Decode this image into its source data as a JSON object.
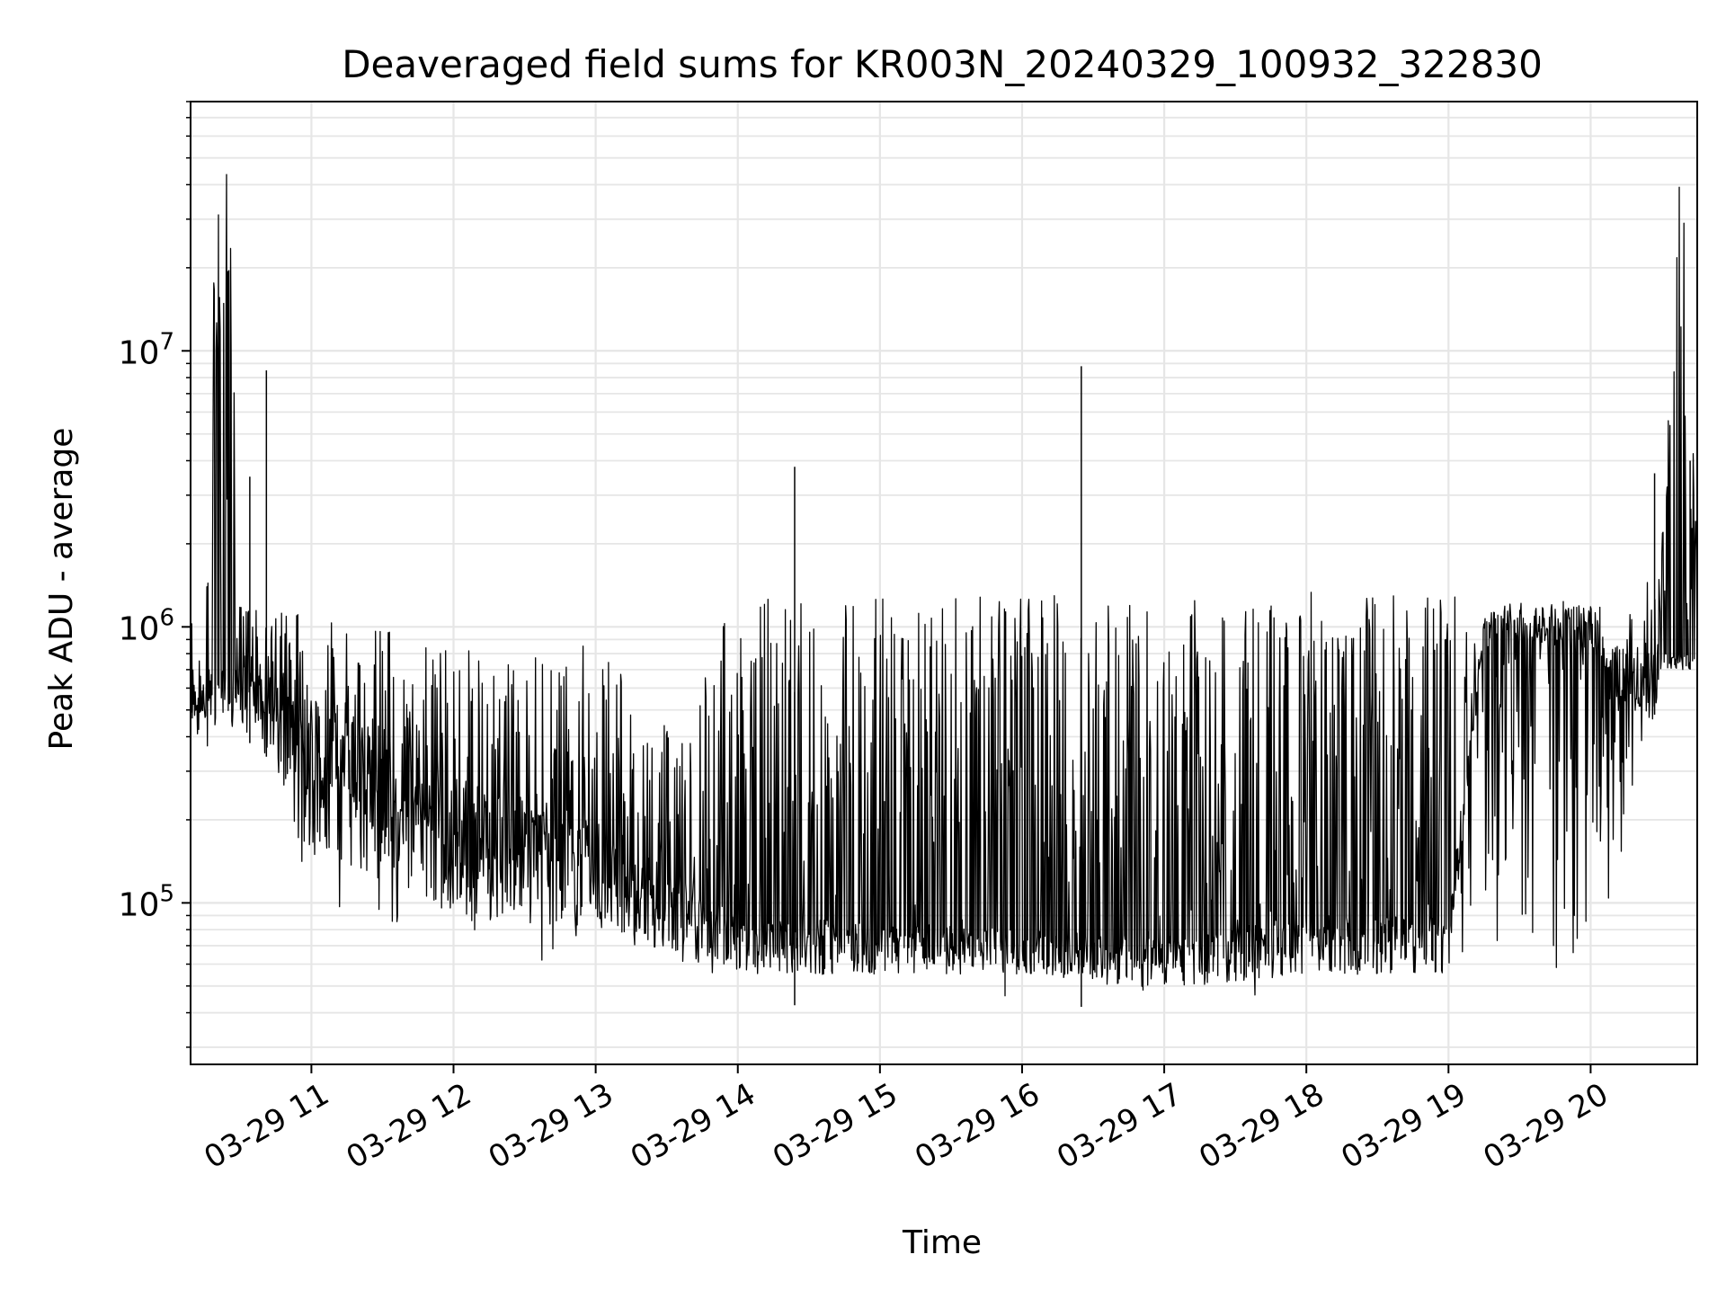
{
  "chart_data": {
    "type": "line",
    "title": "Deaveraged field sums for KR003N_20240329_100932_322830",
    "xlabel": "Time",
    "ylabel": "Peak ADU - average",
    "x_tick_labels": [
      "03-29 11",
      "03-29 12",
      "03-29 13",
      "03-29 14",
      "03-29 15",
      "03-29 16",
      "03-29 17",
      "03-29 18",
      "03-29 19",
      "03-29 20"
    ],
    "x_ticks": [
      "2024-03-29 11:00",
      "2024-03-29 12:00",
      "2024-03-29 13:00",
      "2024-03-29 14:00",
      "2024-03-29 15:00",
      "2024-03-29 16:00",
      "2024-03-29 17:00",
      "2024-03-29 18:00",
      "2024-03-29 19:00",
      "2024-03-29 20:00"
    ],
    "y_tick_labels": [
      {
        "base": "10",
        "exp": "5",
        "value": 100000
      },
      {
        "base": "10",
        "exp": "6",
        "value": 1000000
      },
      {
        "base": "10",
        "exp": "7",
        "value": 10000000
      }
    ],
    "xlim": [
      "2024-03-29 10:09",
      "2024-03-29 20:45"
    ],
    "ylim": [
      26000,
      80000000
    ],
    "yscale": "log",
    "grid": true,
    "line_color": "#000000",
    "grid_color": "#e6e6e6",
    "envelope_points": [
      {
        "x": "2024-03-29 10:09",
        "low": 480000,
        "high": 1500000
      },
      {
        "x": "2024-03-29 10:15",
        "low": 340000,
        "high": 700000
      },
      {
        "x": "2024-03-29 10:20",
        "low": 400000,
        "high": 55000000
      },
      {
        "x": "2024-03-29 10:25",
        "low": 450000,
        "high": 55000000
      },
      {
        "x": "2024-03-29 10:30",
        "low": 400000,
        "high": 1200000
      },
      {
        "x": "2024-03-29 10:40",
        "low": 350000,
        "high": 1300000
      },
      {
        "x": "2024-03-29 10:50",
        "low": 250000,
        "high": 1100000
      },
      {
        "x": "2024-03-29 11:00",
        "low": 85000,
        "high": 1200000
      },
      {
        "x": "2024-03-29 11:30",
        "low": 70000,
        "high": 1000000
      },
      {
        "x": "2024-03-29 12:00",
        "low": 60000,
        "high": 900000
      },
      {
        "x": "2024-03-29 12:30",
        "low": 52000,
        "high": 750000
      },
      {
        "x": "2024-03-29 13:00",
        "low": 55000,
        "high": 950000
      },
      {
        "x": "2024-03-29 13:30",
        "low": 50000,
        "high": 450000
      },
      {
        "x": "2024-03-29 14:00",
        "low": 45000,
        "high": 1300000
      },
      {
        "x": "2024-03-29 14:30",
        "low": 42000,
        "high": 1300000
      },
      {
        "x": "2024-03-29 15:00",
        "low": 45000,
        "high": 1300000
      },
      {
        "x": "2024-03-29 15:30",
        "low": 42000,
        "high": 1300000
      },
      {
        "x": "2024-03-29 16:00",
        "low": 42000,
        "high": 1300000
      },
      {
        "x": "2024-03-29 16:30",
        "low": 42000,
        "high": 1300000
      },
      {
        "x": "2024-03-29 17:00",
        "low": 40000,
        "high": 1300000
      },
      {
        "x": "2024-03-29 17:30",
        "low": 45000,
        "high": 1300000
      },
      {
        "x": "2024-03-29 18:00",
        "low": 45000,
        "high": 1350000
      },
      {
        "x": "2024-03-29 18:30",
        "low": 45000,
        "high": 1350000
      },
      {
        "x": "2024-03-29 19:00",
        "low": 45000,
        "high": 1300000
      },
      {
        "x": "2024-03-29 19:30",
        "low": 55000,
        "high": 1300000
      },
      {
        "x": "2024-03-29 20:00",
        "low": 55000,
        "high": 1200000
      },
      {
        "x": "2024-03-29 20:20",
        "low": 200000,
        "high": 1200000
      },
      {
        "x": "2024-03-29 20:30",
        "low": 700000,
        "high": 2000000
      },
      {
        "x": "2024-03-29 20:38",
        "low": 700000,
        "high": 60000000
      },
      {
        "x": "2024-03-29 20:45",
        "low": 700000,
        "high": 2000000
      }
    ],
    "spikes": [
      {
        "x": "2024-03-29 10:34",
        "y": 3500000
      },
      {
        "x": "2024-03-29 10:41",
        "y": 8500000
      },
      {
        "x": "2024-03-29 14:24",
        "y": 3800000
      },
      {
        "x": "2024-03-29 16:25",
        "y": 8800000
      },
      {
        "x": "2024-03-29 20:27",
        "y": 3600000
      },
      {
        "x": "2024-03-29 20:42",
        "y": 4000000
      }
    ],
    "floor_band": [
      {
        "x": "2024-03-29 11:00",
        "low": 160000,
        "high": 700000
      },
      {
        "x": "2024-03-29 12:00",
        "low": 90000,
        "high": 300000
      },
      {
        "x": "2024-03-29 13:00",
        "low": 80000,
        "high": 200000
      },
      {
        "x": "2024-03-29 14:00",
        "low": 55000,
        "high": 90000
      },
      {
        "x": "2024-03-29 15:00",
        "low": 55000,
        "high": 85000
      },
      {
        "x": "2024-03-29 16:00",
        "low": 55000,
        "high": 80000
      },
      {
        "x": "2024-03-29 17:00",
        "low": 48000,
        "high": 75000
      },
      {
        "x": "2024-03-29 18:00",
        "low": 55000,
        "high": 90000
      },
      {
        "x": "2024-03-29 19:00",
        "low": 55000,
        "high": 90000
      },
      {
        "x": "2024-03-29 19:15",
        "low": 950000,
        "high": 1150000
      },
      {
        "x": "2024-03-29 20:00",
        "low": 800000,
        "high": 1200000
      },
      {
        "x": "2024-03-29 20:20",
        "low": 450000,
        "high": 800000
      }
    ]
  }
}
